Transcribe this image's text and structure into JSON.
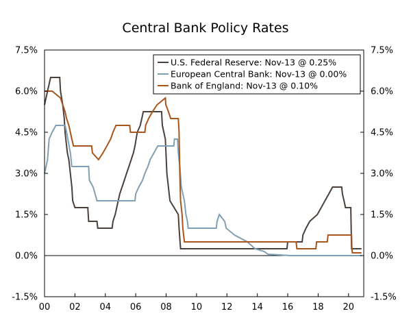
{
  "chart_data": {
    "type": "line",
    "title": "Central Bank Policy Rates",
    "xlabel": "",
    "ylabel": "",
    "xlim": [
      2000,
      2021
    ],
    "ylim": [
      -1.5,
      7.5
    ],
    "x_ticks": [
      {
        "value": 2000,
        "label": "00"
      },
      {
        "value": 2002,
        "label": "02"
      },
      {
        "value": 2004,
        "label": "04"
      },
      {
        "value": 2006,
        "label": "06"
      },
      {
        "value": 2008,
        "label": "08"
      },
      {
        "value": 2010,
        "label": "10"
      },
      {
        "value": 2012,
        "label": "12"
      },
      {
        "value": 2014,
        "label": "14"
      },
      {
        "value": 2016,
        "label": "16"
      },
      {
        "value": 2018,
        "label": "18"
      },
      {
        "value": 2020,
        "label": "20"
      }
    ],
    "y_ticks": [
      {
        "value": 7.5,
        "label": "7.5%"
      },
      {
        "value": 6.0,
        "label": "6.0%"
      },
      {
        "value": 4.5,
        "label": "4.5%"
      },
      {
        "value": 3.0,
        "label": "3.0%"
      },
      {
        "value": 1.5,
        "label": "1.5%"
      },
      {
        "value": 0.0,
        "label": "0.0%"
      },
      {
        "value": -1.5,
        "label": "-1.5%"
      }
    ],
    "grid": false,
    "legend_position": "top-right",
    "series": [
      {
        "name": "U.S. Federal Reserve: Nov-13 @ 0.25%",
        "color": "#4a4039",
        "points": [
          [
            2000.0,
            5.5
          ],
          [
            2000.1,
            5.75
          ],
          [
            2000.2,
            6.0
          ],
          [
            2000.4,
            6.5
          ],
          [
            2001.0,
            6.5
          ],
          [
            2001.05,
            6.0
          ],
          [
            2001.2,
            5.5
          ],
          [
            2001.3,
            5.0
          ],
          [
            2001.35,
            4.5
          ],
          [
            2001.45,
            4.0
          ],
          [
            2001.5,
            3.75
          ],
          [
            2001.6,
            3.5
          ],
          [
            2001.7,
            3.0
          ],
          [
            2001.8,
            2.5
          ],
          [
            2001.85,
            2.0
          ],
          [
            2002.0,
            1.75
          ],
          [
            2002.85,
            1.75
          ],
          [
            2002.9,
            1.25
          ],
          [
            2003.45,
            1.25
          ],
          [
            2003.5,
            1.0
          ],
          [
            2004.45,
            1.0
          ],
          [
            2004.5,
            1.25
          ],
          [
            2004.65,
            1.5
          ],
          [
            2004.75,
            1.75
          ],
          [
            2004.85,
            2.0
          ],
          [
            2004.95,
            2.25
          ],
          [
            2005.1,
            2.5
          ],
          [
            2005.25,
            2.75
          ],
          [
            2005.4,
            3.0
          ],
          [
            2005.55,
            3.25
          ],
          [
            2005.7,
            3.5
          ],
          [
            2005.85,
            3.75
          ],
          [
            2005.95,
            4.0
          ],
          [
            2006.1,
            4.5
          ],
          [
            2006.3,
            4.75
          ],
          [
            2006.5,
            5.25
          ],
          [
            2007.7,
            5.25
          ],
          [
            2007.75,
            4.75
          ],
          [
            2007.85,
            4.5
          ],
          [
            2007.95,
            4.25
          ],
          [
            2008.05,
            3.0
          ],
          [
            2008.25,
            2.0
          ],
          [
            2008.8,
            1.5
          ],
          [
            2008.85,
            1.0
          ],
          [
            2008.95,
            0.25
          ],
          [
            2015.95,
            0.25
          ],
          [
            2016.0,
            0.5
          ],
          [
            2016.95,
            0.5
          ],
          [
            2017.0,
            0.75
          ],
          [
            2017.2,
            1.0
          ],
          [
            2017.45,
            1.25
          ],
          [
            2017.95,
            1.5
          ],
          [
            2018.2,
            1.75
          ],
          [
            2018.45,
            2.0
          ],
          [
            2018.7,
            2.25
          ],
          [
            2018.95,
            2.5
          ],
          [
            2019.55,
            2.5
          ],
          [
            2019.6,
            2.25
          ],
          [
            2019.7,
            2.0
          ],
          [
            2019.8,
            1.75
          ],
          [
            2020.15,
            1.75
          ],
          [
            2020.2,
            0.25
          ],
          [
            2020.85,
            0.25
          ]
        ]
      },
      {
        "name": "European Central Bank: Nov-13 @ 0.00%",
        "color": "#7f9fb5",
        "points": [
          [
            2000.0,
            3.0
          ],
          [
            2000.2,
            3.5
          ],
          [
            2000.3,
            4.25
          ],
          [
            2000.5,
            4.5
          ],
          [
            2000.75,
            4.75
          ],
          [
            2001.35,
            4.75
          ],
          [
            2001.45,
            4.5
          ],
          [
            2001.7,
            3.75
          ],
          [
            2001.8,
            3.25
          ],
          [
            2002.9,
            3.25
          ],
          [
            2002.95,
            2.75
          ],
          [
            2003.2,
            2.5
          ],
          [
            2003.45,
            2.0
          ],
          [
            2005.95,
            2.0
          ],
          [
            2006.0,
            2.25
          ],
          [
            2006.2,
            2.5
          ],
          [
            2006.45,
            2.75
          ],
          [
            2006.6,
            3.0
          ],
          [
            2006.8,
            3.25
          ],
          [
            2006.95,
            3.5
          ],
          [
            2007.2,
            3.75
          ],
          [
            2007.45,
            4.0
          ],
          [
            2008.5,
            4.0
          ],
          [
            2008.55,
            4.25
          ],
          [
            2008.75,
            4.25
          ],
          [
            2008.8,
            3.75
          ],
          [
            2008.9,
            3.25
          ],
          [
            2009.0,
            2.5
          ],
          [
            2009.2,
            2.0
          ],
          [
            2009.3,
            1.5
          ],
          [
            2009.4,
            1.25
          ],
          [
            2009.45,
            1.0
          ],
          [
            2011.3,
            1.0
          ],
          [
            2011.35,
            1.25
          ],
          [
            2011.5,
            1.5
          ],
          [
            2011.85,
            1.25
          ],
          [
            2011.95,
            1.0
          ],
          [
            2012.5,
            0.75
          ],
          [
            2013.35,
            0.5
          ],
          [
            2013.85,
            0.25
          ],
          [
            2014.45,
            0.15
          ],
          [
            2014.7,
            0.05
          ],
          [
            2016.2,
            0.0
          ],
          [
            2020.85,
            0.0
          ]
        ]
      },
      {
        "name": "Bank of England: Nov-13 @ 0.10%",
        "color": "#a8541b",
        "points": [
          [
            2000.0,
            6.0
          ],
          [
            2000.5,
            6.0
          ],
          [
            2001.05,
            5.75
          ],
          [
            2001.2,
            5.5
          ],
          [
            2001.35,
            5.25
          ],
          [
            2001.45,
            5.0
          ],
          [
            2001.6,
            4.75
          ],
          [
            2001.7,
            4.5
          ],
          [
            2001.8,
            4.25
          ],
          [
            2001.9,
            4.0
          ],
          [
            2003.1,
            4.0
          ],
          [
            2003.15,
            3.75
          ],
          [
            2003.55,
            3.5
          ],
          [
            2003.85,
            3.75
          ],
          [
            2004.1,
            4.0
          ],
          [
            2004.35,
            4.25
          ],
          [
            2004.5,
            4.5
          ],
          [
            2004.7,
            4.75
          ],
          [
            2005.6,
            4.75
          ],
          [
            2005.65,
            4.5
          ],
          [
            2006.6,
            4.5
          ],
          [
            2006.65,
            4.75
          ],
          [
            2006.85,
            5.0
          ],
          [
            2007.1,
            5.25
          ],
          [
            2007.4,
            5.5
          ],
          [
            2007.95,
            5.75
          ],
          [
            2007.98,
            5.5
          ],
          [
            2008.15,
            5.25
          ],
          [
            2008.3,
            5.0
          ],
          [
            2008.8,
            5.0
          ],
          [
            2008.85,
            4.5
          ],
          [
            2008.9,
            3.0
          ],
          [
            2008.95,
            2.0
          ],
          [
            2009.05,
            1.5
          ],
          [
            2009.1,
            1.0
          ],
          [
            2009.2,
            0.5
          ],
          [
            2016.55,
            0.5
          ],
          [
            2016.6,
            0.25
          ],
          [
            2017.85,
            0.25
          ],
          [
            2017.9,
            0.5
          ],
          [
            2018.6,
            0.5
          ],
          [
            2018.65,
            0.75
          ],
          [
            2020.2,
            0.75
          ],
          [
            2020.22,
            0.25
          ],
          [
            2020.25,
            0.1
          ],
          [
            2020.85,
            0.1
          ]
        ]
      }
    ]
  }
}
